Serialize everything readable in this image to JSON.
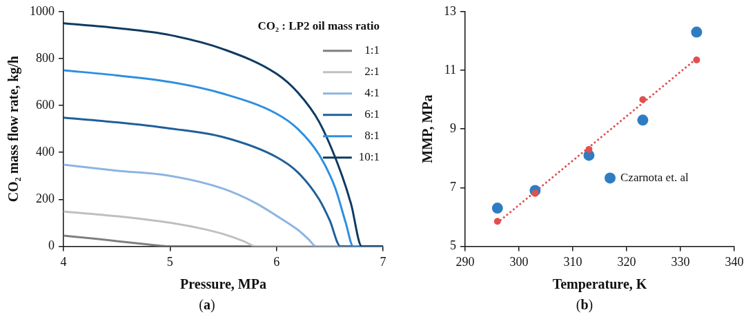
{
  "chart_data": [
    {
      "type": "line",
      "xlabel": "Pressure, MPa",
      "ylabel": "CO₂ mass flow rate, kg/h",
      "legend_title": "CO₂ : LP2 oil mass ratio",
      "legend": "top right",
      "grid": false,
      "marker": "none",
      "line_style": "solid",
      "xlim": [
        4,
        7
      ],
      "ylim": [
        0,
        1000
      ],
      "xticks": [
        4,
        5,
        6,
        7
      ],
      "yticks": [
        0,
        200,
        400,
        600,
        800,
        1000
      ],
      "annotations": [
        "(a)"
      ],
      "series": [
        {
          "name": "1:1",
          "color": "#7f7f7f",
          "x": [
            4,
            4.3,
            4.5,
            4.7,
            4.85,
            4.97,
            7
          ],
          "values": [
            45,
            32,
            22,
            12,
            5,
            0,
            0
          ]
        },
        {
          "name": "2:1",
          "color": "#bfbfbf",
          "x": [
            4,
            4.5,
            5,
            5.3,
            5.5,
            5.7,
            5.8,
            7
          ],
          "values": [
            148,
            128,
            100,
            75,
            52,
            20,
            0,
            0
          ]
        },
        {
          "name": "4:1",
          "color": "#8db4e2",
          "x": [
            4,
            4.5,
            5,
            5.5,
            5.8,
            6,
            6.2,
            6.3,
            6.37,
            7
          ],
          "values": [
            348,
            322,
            300,
            245,
            185,
            130,
            70,
            30,
            0,
            0
          ]
        },
        {
          "name": "6:1",
          "color": "#1f5f99",
          "x": [
            4,
            4.5,
            5,
            5.5,
            6,
            6.2,
            6.4,
            6.5,
            6.6,
            7
          ],
          "values": [
            548,
            528,
            502,
            465,
            380,
            315,
            200,
            110,
            0,
            0
          ]
        },
        {
          "name": "8:1",
          "color": "#2e8fe0",
          "x": [
            4,
            4.5,
            5,
            5.5,
            6,
            6.2,
            6.4,
            6.55,
            6.65,
            6.72,
            7
          ],
          "values": [
            750,
            728,
            700,
            650,
            565,
            500,
            390,
            250,
            100,
            0,
            0
          ]
        },
        {
          "name": "10:1",
          "color": "#0e3a62",
          "x": [
            4,
            4.5,
            5,
            5.5,
            6,
            6.2,
            6.4,
            6.6,
            6.7,
            6.8,
            7
          ],
          "values": [
            950,
            930,
            900,
            840,
            735,
            655,
            530,
            320,
            180,
            0,
            0
          ]
        }
      ]
    },
    {
      "type": "scatter",
      "xlabel": "Temperature, K",
      "ylabel": "MMP, MPa",
      "legend": "bottom right",
      "grid": false,
      "xlim": [
        290,
        340
      ],
      "ylim": [
        5,
        13
      ],
      "xticks": [
        290,
        300,
        310,
        320,
        330,
        340
      ],
      "yticks": [
        5,
        7,
        9,
        11,
        13
      ],
      "annotations": [
        "(b)"
      ],
      "series": [
        {
          "name": "Czarnota et. al",
          "marker": "circle",
          "color": "#2e7dc2",
          "x": [
            296,
            303,
            313,
            323,
            333
          ],
          "values": [
            6.3,
            6.9,
            8.1,
            9.3,
            12.3
          ]
        },
        {
          "marker": "circle",
          "color": "#e05050",
          "x": [
            296,
            303,
            313,
            323,
            333
          ],
          "values": [
            5.85,
            6.8,
            8.3,
            10.0,
            11.35
          ]
        },
        {
          "type": "line",
          "marker": "none",
          "line_style": "dotted",
          "color": "#e05050",
          "x": [
            296,
            333
          ],
          "values": [
            5.8,
            11.4
          ]
        }
      ]
    }
  ]
}
